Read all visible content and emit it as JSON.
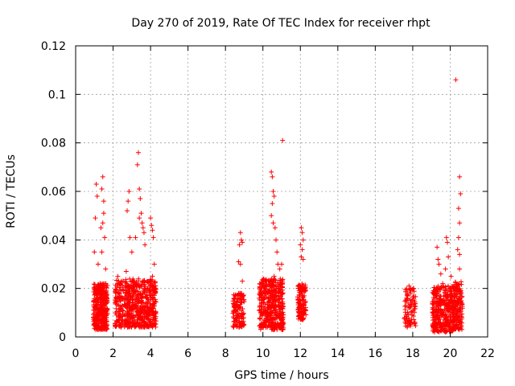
{
  "chart_data": {
    "type": "scatter",
    "title": "Day 270 of 2019, Rate Of TEC Index for receiver rhpt",
    "xlabel": "GPS time / hours",
    "ylabel": "ROTI / TECUs",
    "xlim": [
      0,
      22
    ],
    "ylim": [
      0,
      0.12
    ],
    "grid": true,
    "x_ticks": [
      "0",
      "2",
      "4",
      "6",
      "8",
      "10",
      "12",
      "14",
      "16",
      "18",
      "20",
      "22"
    ],
    "y_ticks": [
      "0",
      "0.02",
      "0.04",
      "0.06",
      "0.08",
      "0.1",
      "0.12"
    ],
    "marker": "+",
    "color": "#ff0000",
    "series": [
      {
        "name": "ROTI",
        "points": [
          [
            1.0,
            0.035
          ],
          [
            1.1,
            0.063
          ],
          [
            1.15,
            0.058
          ],
          [
            1.05,
            0.049
          ],
          [
            1.2,
            0.03
          ],
          [
            1.3,
            0.022
          ],
          [
            1.35,
            0.045
          ],
          [
            1.45,
            0.066
          ],
          [
            1.4,
            0.061
          ],
          [
            1.5,
            0.056
          ],
          [
            1.5,
            0.051
          ],
          [
            1.45,
            0.047
          ],
          [
            1.55,
            0.041
          ],
          [
            1.6,
            0.028
          ],
          [
            1.4,
            0.035
          ],
          [
            2.25,
            0.025
          ],
          [
            2.3,
            0.023
          ],
          [
            2.7,
            0.027
          ],
          [
            2.75,
            0.052
          ],
          [
            2.8,
            0.056
          ],
          [
            2.85,
            0.06
          ],
          [
            2.9,
            0.041
          ],
          [
            3.0,
            0.035
          ],
          [
            3.2,
            0.041
          ],
          [
            3.35,
            0.076
          ],
          [
            3.3,
            0.071
          ],
          [
            3.4,
            0.061
          ],
          [
            3.45,
            0.057
          ],
          [
            3.5,
            0.051
          ],
          [
            3.4,
            0.049
          ],
          [
            3.55,
            0.047
          ],
          [
            3.6,
            0.045
          ],
          [
            3.65,
            0.043
          ],
          [
            3.7,
            0.038
          ],
          [
            4.0,
            0.049
          ],
          [
            4.05,
            0.046
          ],
          [
            4.1,
            0.044
          ],
          [
            4.15,
            0.041
          ],
          [
            4.2,
            0.03
          ],
          [
            4.1,
            0.025
          ],
          [
            8.75,
            0.038
          ],
          [
            8.8,
            0.043
          ],
          [
            8.85,
            0.04
          ],
          [
            8.9,
            0.039
          ],
          [
            8.7,
            0.031
          ],
          [
            8.8,
            0.03
          ],
          [
            8.9,
            0.023
          ],
          [
            10.45,
            0.068
          ],
          [
            10.5,
            0.066
          ],
          [
            10.55,
            0.06
          ],
          [
            10.6,
            0.058
          ],
          [
            10.5,
            0.055
          ],
          [
            10.45,
            0.05
          ],
          [
            10.55,
            0.047
          ],
          [
            10.65,
            0.045
          ],
          [
            10.7,
            0.04
          ],
          [
            10.75,
            0.035
          ],
          [
            10.8,
            0.03
          ],
          [
            10.6,
            0.025
          ],
          [
            10.9,
            0.028
          ],
          [
            11.05,
            0.081
          ],
          [
            11.0,
            0.03
          ],
          [
            12.05,
            0.045
          ],
          [
            12.1,
            0.043
          ],
          [
            12.15,
            0.04
          ],
          [
            12.0,
            0.038
          ],
          [
            12.1,
            0.036
          ],
          [
            12.05,
            0.033
          ],
          [
            12.15,
            0.032
          ],
          [
            17.8,
            0.021
          ],
          [
            18.05,
            0.02
          ],
          [
            17.9,
            0.018
          ],
          [
            19.3,
            0.037
          ],
          [
            19.35,
            0.032
          ],
          [
            19.4,
            0.03
          ],
          [
            19.5,
            0.026
          ],
          [
            19.6,
            0.022
          ],
          [
            19.8,
            0.041
          ],
          [
            19.85,
            0.039
          ],
          [
            19.9,
            0.033
          ],
          [
            19.75,
            0.028
          ],
          [
            20.05,
            0.025
          ],
          [
            20.3,
            0.106
          ],
          [
            20.5,
            0.066
          ],
          [
            20.55,
            0.059
          ],
          [
            20.45,
            0.053
          ],
          [
            20.5,
            0.047
          ],
          [
            20.45,
            0.041
          ],
          [
            20.4,
            0.036
          ],
          [
            20.5,
            0.034
          ],
          [
            20.5,
            0.028
          ]
        ],
        "dense_clusters": [
          {
            "x_range": [
              0.95,
              1.7
            ],
            "y_range": [
              0.003,
              0.022
            ],
            "count": 380
          },
          {
            "x_range": [
              2.1,
              2.55
            ],
            "y_range": [
              0.004,
              0.024
            ],
            "count": 110
          },
          {
            "x_range": [
              2.6,
              4.3
            ],
            "y_range": [
              0.004,
              0.024
            ],
            "count": 520
          },
          {
            "x_range": [
              8.4,
              9.0
            ],
            "y_range": [
              0.004,
              0.018
            ],
            "count": 130
          },
          {
            "x_range": [
              9.8,
              11.1
            ],
            "y_range": [
              0.003,
              0.024
            ],
            "count": 420
          },
          {
            "x_range": [
              11.85,
              12.3
            ],
            "y_range": [
              0.007,
              0.022
            ],
            "count": 120
          },
          {
            "x_range": [
              17.55,
              18.15
            ],
            "y_range": [
              0.004,
              0.02
            ],
            "count": 90
          },
          {
            "x_range": [
              19.05,
              20.2
            ],
            "y_range": [
              0.002,
              0.021
            ],
            "count": 360
          },
          {
            "x_range": [
              20.15,
              20.65
            ],
            "y_range": [
              0.003,
              0.023
            ],
            "count": 160
          }
        ]
      }
    ]
  }
}
